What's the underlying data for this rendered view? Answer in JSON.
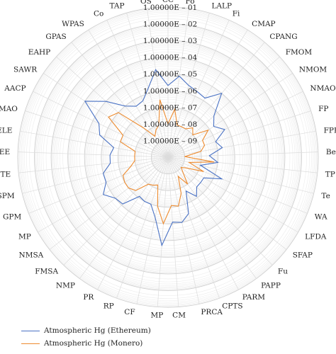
{
  "chart_data": {
    "type": "radar",
    "scale": "log",
    "rlim": [
      1e-10,
      0.1
    ],
    "radial_ticks": [
      "1.00000E – 09",
      "1.00000E – 08",
      "1.00000E – 07",
      "1.00000E – 06",
      "1.00000E – 05",
      "1.00000E – 04",
      "1.00000E – 03",
      "1.00000E – 02",
      "1.00000E – 01"
    ],
    "radial_tick_values": [
      1e-09,
      1e-08,
      1e-07,
      1e-06,
      1e-05,
      0.0001,
      0.001,
      0.01,
      0.1
    ],
    "grid": true,
    "legend_position": "bottom-left",
    "categories": [
      "CC",
      "Fo",
      "LALP",
      "Fi",
      "CMAP",
      "CPANG",
      "FMOM",
      "NMOM",
      "NMAO",
      "FP",
      "FPR",
      "Be",
      "TP",
      "Te",
      "WA",
      "LFDA",
      "SFAP",
      "Fu",
      "PAPP",
      "PARM",
      "CPTS",
      "PRCA",
      "CM",
      "MP",
      "CF",
      "RP",
      "PR",
      "NMP",
      "FMSA",
      "NMSA",
      "MP",
      "GPM",
      "SPM",
      "TE",
      "EE",
      "ELE",
      "IMAO",
      "AACP",
      "SAWR",
      "EAHP",
      "GPAS",
      "WPAS",
      "Co",
      "TAP",
      "OS"
    ],
    "series": [
      {
        "name": "Atmospheric Hg (Ethereum)",
        "color": "#4a72c4",
        "values": [
          2e-06,
          8e-06,
          3e-06,
          2e-06,
          1.5e-06,
          1e-05,
          5e-07,
          2e-07,
          6e-07,
          1e-07,
          2e-07,
          3e-08,
          1e-07,
          1e-08,
          3e-07,
          3e-08,
          3e-08,
          3e-08,
          8e-08,
          2e-08,
          4e-07,
          1e-06,
          8e-07,
          2e-05,
          5e-07,
          1e-07,
          1e-07,
          8e-08,
          8e-07,
          1e-06,
          3e-06,
          1e-06,
          1e-06,
          3e-07,
          3e-07,
          2e-07,
          2e-06,
          4e-06,
          0.0001,
          1e-05,
          1e-06,
          4e-07,
          5e-07,
          2e-06,
          2e-05
        ]
      },
      {
        "name": "Atmospheric Hg (Monero)",
        "color": "#ed8b2f",
        "values": [
          1e-08,
          8e-08,
          1e-08,
          1e-08,
          1e-08,
          2e-08,
          1e-08,
          8e-08,
          2e-08,
          2e-08,
          1e-08,
          1e-09,
          6e-08,
          2e-09,
          2e-08,
          2e-09,
          1e-09,
          2e-09,
          1e-08,
          2e-09,
          2e-08,
          1e-07,
          8e-08,
          1e-06,
          1e-07,
          6e-09,
          8e-09,
          1e-08,
          6e-08,
          1e-07,
          1e-07,
          8e-08,
          2e-08,
          1e-08,
          1e-08,
          1e-08,
          1e-07,
          1e-07,
          2e-06,
          1e-06,
          2e-08,
          3e-09,
          6e-09,
          1e-08,
          3e-07
        ]
      }
    ]
  }
}
